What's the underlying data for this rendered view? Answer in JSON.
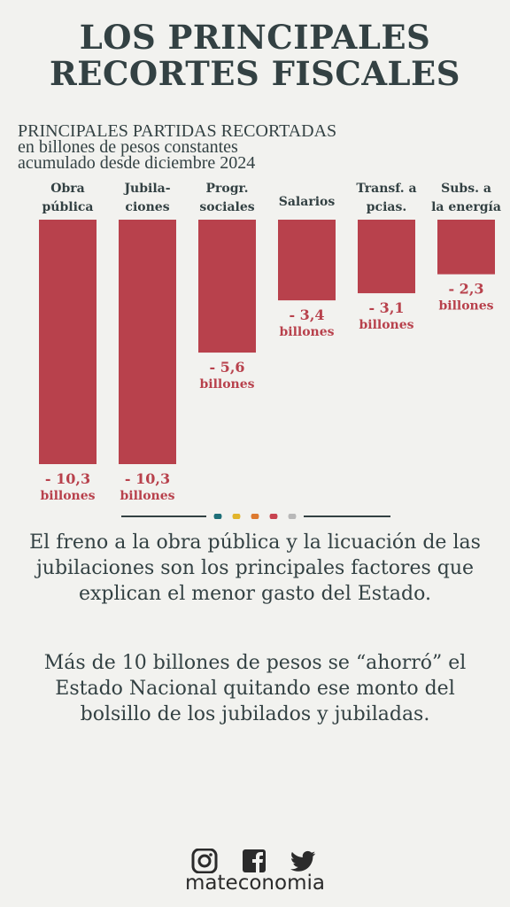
{
  "title": {
    "line1": "LOS PRINCIPALES",
    "line2": "RECORTES FISCALES"
  },
  "chart_data": {
    "type": "bar",
    "title": "PRINCIPALES PARTIDAS RECORTADAS",
    "subtitle_line1": "en billones de pesos constantes",
    "subtitle_line2": "acumulado desde diciembre 2024",
    "categories": [
      [
        "Obra",
        "pública"
      ],
      [
        "Jubila-",
        "ciones"
      ],
      [
        "Progr.",
        "sociales"
      ],
      [
        "Salarios"
      ],
      [
        "Transf. a",
        "pcias."
      ],
      [
        "Subs. a",
        "la energía"
      ]
    ],
    "values": [
      -10.3,
      -10.3,
      -5.6,
      -3.4,
      -3.1,
      -2.3
    ],
    "value_labels": [
      "- 10,3",
      "- 10,3",
      "- 5,6",
      "- 3,4",
      "- 3,1",
      "- 2,3"
    ],
    "unit_label": "billones",
    "ylim": [
      -10.3,
      0
    ],
    "grid": false,
    "legend": "none",
    "bar_color": "#b8414c",
    "label_color": "#b8414c"
  },
  "divider_dot_colors": [
    "#1e6f78",
    "#e2b52b",
    "#dd7a2f",
    "#c8434f",
    "#b8b8b8"
  ],
  "body": {
    "p1": "El freno a la obra pública y la licuación de las jubilaciones son los principales factores que explican el menor gasto del Estado.",
    "p2": "Más de 10 billones de pesos se “ahorró” el Estado Nacional quitando ese monto del bolsillo de los jubilados y jubiladas."
  },
  "social_icons": [
    "instagram-icon",
    "facebook-icon",
    "twitter-icon"
  ],
  "brand": "mateconomia"
}
